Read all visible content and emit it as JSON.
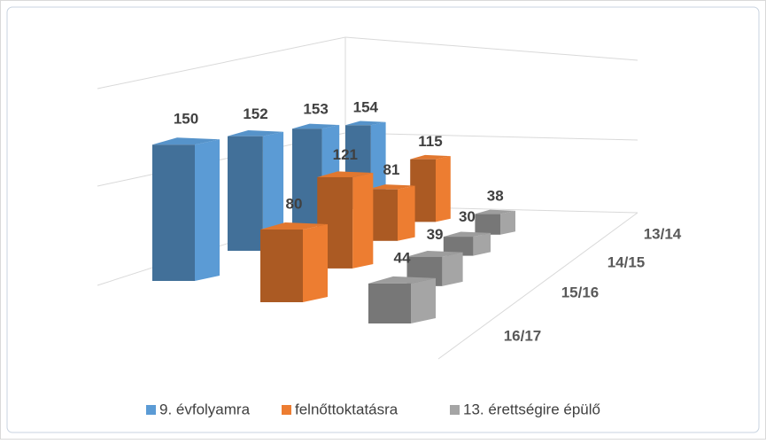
{
  "chart_data": {
    "type": "bar3d",
    "categories": [
      "13/14",
      "14/15",
      "15/16",
      "16/17"
    ],
    "series": [
      {
        "name": "9. évfolyamra",
        "color": "#5b9bd5",
        "values": [
          154,
          153,
          152,
          150
        ]
      },
      {
        "name": "felnőttoktatásra",
        "color": "#ed7d31",
        "values": [
          115,
          81,
          121,
          80
        ]
      },
      {
        "name": "13. érettségire épülő",
        "color": "#a5a5a5",
        "values": [
          38,
          30,
          39,
          44
        ]
      }
    ],
    "ylim": [
      0,
      160
    ]
  }
}
